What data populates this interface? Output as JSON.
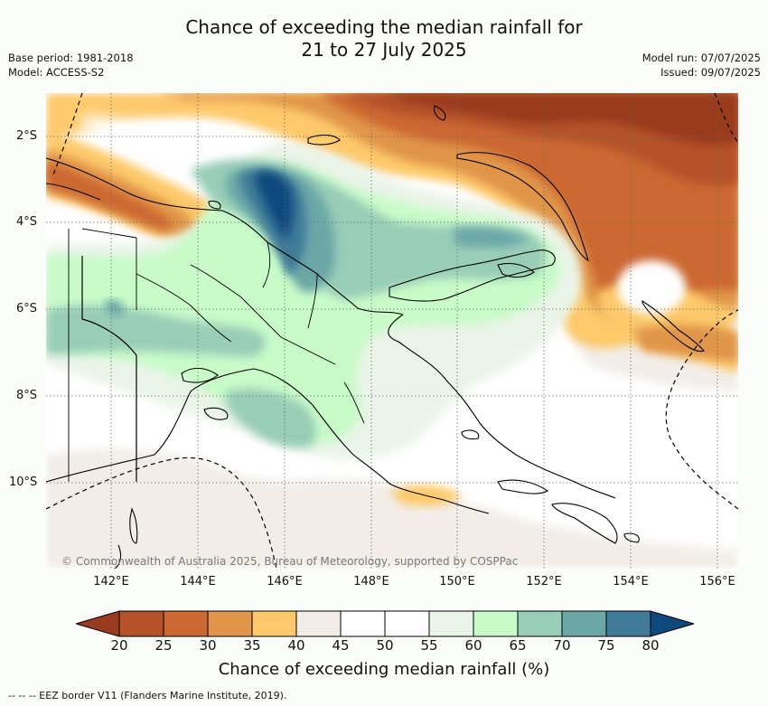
{
  "title_line1": "Chance of exceeding the median rainfall for",
  "title_line2": "21 to 27 July 2025",
  "base_period": "Base period: 1981-2018",
  "model": "Model: ACCESS-S2",
  "model_run": "Model run: 07/07/2025",
  "issued": "Issued: 09/07/2025",
  "copyright": "© Commonwealth of Australia 2025, Bureau of Meteorology, supported by COSPPac",
  "lat_labels": [
    "2°S",
    "4°S",
    "6°S",
    "8°S",
    "10°S"
  ],
  "lon_labels": [
    "142°E",
    "144°E",
    "146°E",
    "148°E",
    "150°E",
    "152°E",
    "154°E",
    "156°E"
  ],
  "colorbar": {
    "label": "Chance of exceeding median rainfall (%)",
    "ticks": [
      "20",
      "25",
      "30",
      "35",
      "40",
      "45",
      "50",
      "55",
      "60",
      "65",
      "70",
      "75",
      "80"
    ],
    "colors": [
      "#9a3a1e",
      "#b4522a",
      "#cc6833",
      "#e0954a",
      "#fdc96a",
      "#f2ede8",
      "#ffffff",
      "#ffffff",
      "#eaf4e8",
      "#c8fbc8",
      "#98cdb7",
      "#6ca7a8",
      "#3f7a98",
      "#0f4a7e"
    ]
  },
  "footnote": "-- -- -- EEZ border V11 (Flanders Marine Institute, 2019)."
}
